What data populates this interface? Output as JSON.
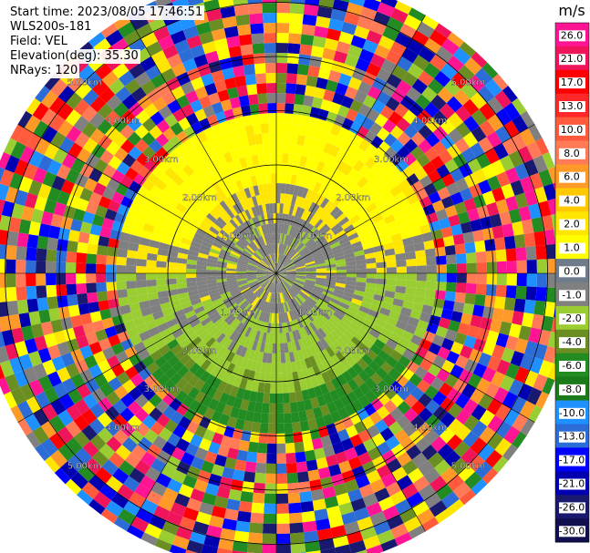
{
  "header": {
    "start_time": "Start time: 2023/08/05 17:46:51",
    "site": "WLS200s-181",
    "field": "Field: VEL",
    "elevation": "Elevation(deg): 35.30",
    "nrays": "NRays: 120"
  },
  "chart_data": {
    "type": "heatmap",
    "projection": "polar-ppi",
    "field": "VEL",
    "units": "m/s",
    "nrays": 120,
    "ring_labels": [
      "1.00km",
      "2.00km",
      "3.00km",
      "4.00km",
      "5.00km"
    ],
    "ring_ranges_km": [
      1,
      2,
      3,
      4,
      5
    ],
    "colorbar": {
      "units": "m/s",
      "ticks": [
        "26.0",
        "21.0",
        "17.0",
        "13.0",
        "10.0",
        "8.0",
        "6.0",
        "4.0",
        "2.0",
        "1.0",
        "0.0",
        "-1.0",
        "-2.0",
        "-4.0",
        "-6.0",
        "-8.0",
        "-10.0",
        "-13.0",
        "-17.0",
        "-21.0",
        "-26.0",
        "-30.0"
      ],
      "colors": [
        "#ff1493",
        "#f0145a",
        "#ff0000",
        "#ff2828",
        "#ff5a3c",
        "#ff7a55",
        "#ff9a28",
        "#ffc800",
        "#ffe600",
        "#ffff00",
        "#6e7b8b",
        "#808080",
        "#9acd32",
        "#6b8e23",
        "#228b22",
        "#1a7a1a",
        "#1e90ff",
        "#2b6cd6",
        "#0000ff",
        "#0000b0",
        "#191970",
        "#101050"
      ]
    },
    "pattern": {
      "description_values": "near-range zero velocity grey, north sector positive yellow ~3 m/s, south sector negative green ~-4 m/s, beyond ~3 km noise",
      "near_grey_km": 1.6,
      "signal_km": 2.9,
      "max_km": 5.5
    }
  }
}
